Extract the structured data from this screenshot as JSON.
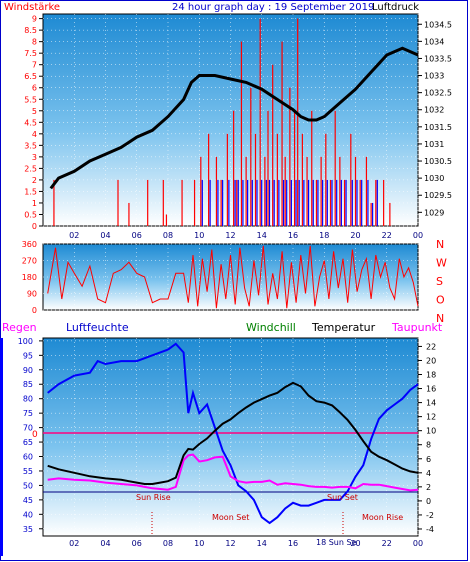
{
  "header": {
    "left": "Windstärke",
    "title": "24 hour graph day : 19 September 2019",
    "right": "Luftdruck"
  },
  "legend": {
    "regen": "Regen",
    "luftfeuchte": "Luftfeuchte",
    "windchill": "Windchill",
    "temperatur": "Temperatur",
    "taupunkt": "Taupunkt"
  },
  "colors": {
    "bg_top": "#1f8fd6",
    "bg_bottom": "#ffffff",
    "wind": "#ff0000",
    "gust_blue": "#0000ff",
    "pressure": "#000000",
    "humidity": "#0000ff",
    "temperature": "#000000",
    "dewpoint": "#ff00ff",
    "zero_line": "#ff0080",
    "frame": "#0000cc"
  },
  "chart_data": [
    {
      "type": "bar",
      "name": "wind_pressure",
      "x_ticks": [
        "02",
        "04",
        "06",
        "08",
        "10",
        "12",
        "14",
        "16",
        "18",
        "20",
        "22",
        "00"
      ],
      "left_axis": {
        "ticks": [
          "0",
          "0.5",
          "1",
          "1.5",
          "2",
          "2.5",
          "3",
          "3.5",
          "4",
          "4.5",
          "5",
          "5.5",
          "6",
          "6.5",
          "7",
          "7.5",
          "8",
          "8.5",
          "9"
        ],
        "ylim": [
          0,
          9.2
        ]
      },
      "right_axis": {
        "ticks": [
          "1029",
          "1029.5",
          "1030",
          "1030.5",
          "1031",
          "1031.5",
          "1032",
          "1032.5",
          "1033",
          "1033.5",
          "1034",
          "1034.5"
        ],
        "ylim": [
          1028.6,
          1034.8
        ]
      },
      "pressure": {
        "x": [
          0.5,
          1,
          2,
          3,
          4,
          5,
          6,
          7,
          8,
          9,
          9.5,
          10,
          11,
          12,
          13,
          14,
          15,
          16,
          16.5,
          17,
          17.5,
          18,
          19,
          20,
          21,
          22,
          23,
          24
        ],
        "y": [
          1029.7,
          1030.0,
          1030.2,
          1030.5,
          1030.7,
          1030.9,
          1031.2,
          1031.4,
          1031.8,
          1032.3,
          1032.8,
          1033.0,
          1033.0,
          1032.9,
          1032.8,
          1032.6,
          1032.3,
          1032.0,
          1031.8,
          1031.7,
          1031.7,
          1031.8,
          1032.2,
          1032.6,
          1033.1,
          1033.6,
          1033.8,
          1033.6
        ]
      },
      "wind_spikes": {
        "x": [
          0.7,
          4.8,
          5.5,
          6.7,
          7.7,
          7.9,
          8.9,
          9.7,
          10.1,
          10.6,
          11.1,
          11.4,
          11.8,
          12.2,
          12.4,
          12.7,
          13.0,
          13.3,
          13.6,
          13.9,
          14.2,
          14.4,
          14.7,
          15.0,
          15.3,
          15.5,
          15.8,
          16.1,
          16.3,
          16.6,
          16.9,
          17.2,
          17.5,
          17.8,
          18.1,
          18.4,
          18.7,
          19.0,
          19.3,
          19.7,
          20.0,
          20.3,
          20.7,
          21.0,
          21.3,
          21.8,
          22.2
        ],
        "y": [
          2,
          2,
          1,
          2,
          2,
          0.5,
          2,
          2,
          3,
          4,
          3,
          2,
          4,
          5,
          2,
          8,
          3,
          6,
          4,
          9,
          3,
          5,
          7,
          4,
          8,
          3,
          6,
          5,
          9,
          4,
          3,
          5,
          2,
          3,
          4,
          2,
          5,
          3,
          2,
          4,
          3,
          2,
          3,
          1,
          2,
          2,
          1
        ]
      }
    },
    {
      "type": "line",
      "name": "wind_direction",
      "left_ticks": [
        "0",
        "90",
        "180",
        "270",
        "360"
      ],
      "right_labels": [
        "N",
        "W",
        "S",
        "O",
        "N"
      ],
      "ylim": [
        0,
        360
      ],
      "x": [
        0.3,
        0.8,
        1.2,
        1.6,
        2,
        2.5,
        3,
        3.5,
        4,
        4.5,
        5,
        5.5,
        6,
        6.5,
        7,
        7.5,
        8,
        8.5,
        9,
        9.3,
        9.6,
        9.9,
        10.2,
        10.5,
        10.8,
        11.1,
        11.4,
        11.7,
        12,
        12.3,
        12.6,
        12.9,
        13.2,
        13.5,
        13.8,
        14.1,
        14.4,
        14.7,
        15,
        15.3,
        15.6,
        15.9,
        16.2,
        16.5,
        16.8,
        17.1,
        17.4,
        17.7,
        18,
        18.3,
        18.6,
        18.9,
        19.2,
        19.5,
        19.8,
        20.1,
        20.4,
        20.7,
        21,
        21.3,
        21.6,
        21.9,
        22.2,
        22.5,
        22.8,
        23.1,
        23.4,
        23.7,
        24
      ],
      "y": [
        90,
        340,
        60,
        260,
        200,
        130,
        240,
        60,
        40,
        200,
        220,
        260,
        200,
        180,
        40,
        60,
        60,
        200,
        200,
        40,
        300,
        20,
        280,
        100,
        330,
        10,
        250,
        60,
        300,
        30,
        340,
        120,
        20,
        270,
        80,
        350,
        30,
        200,
        60,
        320,
        10,
        260,
        40,
        300,
        90,
        350,
        20,
        180,
        270,
        60,
        320,
        120,
        280,
        40,
        330,
        100,
        220,
        280,
        60,
        300,
        180,
        260,
        120,
        60,
        280,
        180,
        230,
        150,
        20
      ]
    },
    {
      "type": "line",
      "name": "climate",
      "x_ticks": [
        "02",
        "04",
        "06",
        "08",
        "10",
        "12",
        "14",
        "16",
        "18",
        "20",
        "22",
        "00"
      ],
      "left_axis_humidity": {
        "ticks": [
          "35",
          "40",
          "45",
          "50",
          "55",
          "60",
          "65",
          "70",
          "75",
          "80",
          "85",
          "90",
          "95",
          "100"
        ],
        "ylim": [
          32.5,
          101
        ]
      },
      "right_axis_temp": {
        "ticks": [
          "-4",
          "-2",
          "0",
          "2",
          "4",
          "6",
          "8",
          "10",
          "12",
          "14",
          "16",
          "18",
          "20",
          "22"
        ],
        "ylim": [
          -5,
          23.2
        ]
      },
      "left_marker": "0",
      "annotations": [
        "Sun Rise",
        "Moon Set",
        "Sun Set",
        "Moon Rise",
        "18 Sun Se"
      ],
      "series": [
        {
          "name": "Luftfeuchte",
          "x": [
            0.3,
            1,
            2,
            3,
            3.5,
            4,
            5,
            6,
            7,
            8,
            8.5,
            9,
            9.3,
            9.6,
            10,
            10.5,
            11,
            11.5,
            12,
            12.5,
            13,
            13.5,
            14,
            14.5,
            15,
            15.5,
            16,
            16.5,
            17,
            17.5,
            18,
            18.5,
            19,
            19.5,
            20,
            20.5,
            21,
            21.5,
            22,
            22.5,
            23,
            23.5,
            24
          ],
          "y": [
            82,
            85,
            88,
            89,
            93,
            92,
            93,
            93,
            95,
            97,
            99,
            96,
            75,
            82,
            75,
            78,
            70,
            62,
            57,
            50,
            48,
            45,
            39,
            37,
            39,
            42,
            44,
            43,
            43,
            44,
            45,
            45,
            45,
            48,
            53,
            57,
            66,
            73,
            76,
            78,
            80,
            83,
            85
          ]
        },
        {
          "name": "Temperatur",
          "x": [
            0.3,
            1,
            2,
            3,
            4,
            5,
            6,
            6.5,
            7,
            7.5,
            8,
            8.5,
            9,
            9.3,
            9.6,
            10,
            10.5,
            11,
            11.5,
            12,
            12.5,
            13,
            13.5,
            14,
            14.5,
            15,
            15.5,
            16,
            16.5,
            17,
            17.5,
            18,
            18.5,
            19,
            19.5,
            20,
            20.5,
            21,
            21.5,
            22,
            22.5,
            23,
            23.5,
            24
          ],
          "y": [
            5,
            4.5,
            4,
            3.5,
            3.2,
            3,
            2.6,
            2.4,
            2.4,
            2.6,
            2.8,
            3.3,
            6.5,
            7.4,
            7.3,
            8.1,
            8.9,
            10,
            11,
            11.6,
            12.5,
            13.3,
            14,
            14.5,
            15,
            15.4,
            16.2,
            16.8,
            16.3,
            15,
            14.2,
            14,
            13.6,
            12.6,
            11.5,
            10.1,
            8.5,
            7,
            6.3,
            5.8,
            5.2,
            4.6,
            4.2,
            4
          ]
        },
        {
          "name": "Taupunkt",
          "x": [
            0.3,
            1,
            2,
            3,
            4,
            5,
            6,
            6.5,
            7,
            7.5,
            8,
            8.5,
            9,
            9.3,
            9.6,
            10,
            10.5,
            11,
            11.5,
            12,
            12.5,
            13,
            13.5,
            14,
            14.5,
            15,
            15.5,
            16,
            16.5,
            17,
            17.5,
            18,
            18.5,
            19,
            19.5,
            20,
            20.5,
            21,
            21.5,
            22,
            22.5,
            23,
            23.5,
            24
          ],
          "y": [
            3,
            3.2,
            3,
            2.9,
            2.6,
            2.4,
            2.2,
            2,
            1.8,
            1.7,
            1.6,
            2,
            5.8,
            6.5,
            6.6,
            5.6,
            5.8,
            6.2,
            6.3,
            3.5,
            2.8,
            2.6,
            2.7,
            2.7,
            2.9,
            2.3,
            2.5,
            2.4,
            2.3,
            2.1,
            2.0,
            2.0,
            1.9,
            2.0,
            2.0,
            1.8,
            2.4,
            2.3,
            2.3,
            2.1,
            1.9,
            1.7,
            1.5,
            1.6
          ]
        }
      ]
    }
  ]
}
